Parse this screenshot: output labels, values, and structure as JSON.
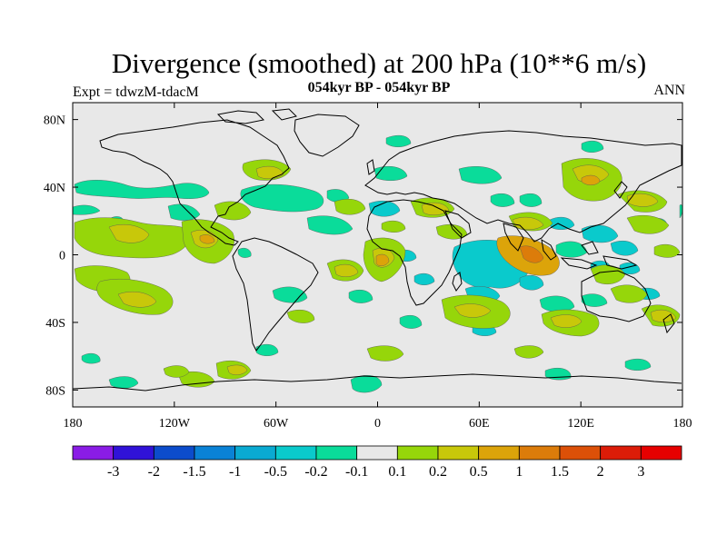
{
  "title": "Divergence (smoothed) at 200 hPa (10**6 m/s)",
  "left_string": "Expt = tdwzM-tdacM",
  "center_string": "054kyr BP - 054kyr BP",
  "right_string": "ANN",
  "map": {
    "projection": "cylindrical-equidistant",
    "lon_range": [
      -180,
      180
    ],
    "lat_range": [
      -90,
      90
    ],
    "lon_ticks": [
      {
        "value": -180,
        "label": "180"
      },
      {
        "value": -120,
        "label": "120W"
      },
      {
        "value": -60,
        "label": "60W"
      },
      {
        "value": 0,
        "label": "0"
      },
      {
        "value": 60,
        "label": "60E"
      },
      {
        "value": 120,
        "label": "120E"
      },
      {
        "value": 180,
        "label": "180"
      }
    ],
    "lat_ticks": [
      {
        "value": 80,
        "label": "80N"
      },
      {
        "value": 40,
        "label": "40N"
      },
      {
        "value": 0,
        "label": "0"
      },
      {
        "value": -40,
        "label": "40S"
      },
      {
        "value": -80,
        "label": "80S"
      }
    ],
    "background_color": "#e8e8e8"
  },
  "colorbar": {
    "levels": [
      "-3",
      "-2",
      "-1.5",
      "-1",
      "-0.5",
      "-0.2",
      "-0.1",
      "0.1",
      "0.2",
      "0.5",
      "1",
      "1.5",
      "2",
      "3"
    ],
    "colors": [
      "#8a1ce6",
      "#3012d8",
      "#0c4ccc",
      "#0a82d6",
      "#0aaad2",
      "#0acacc",
      "#0adc9a",
      "#e8e8e8",
      "#96d60a",
      "#c8c80a",
      "#dca40a",
      "#dc7c0a",
      "#dc5008",
      "#dc1c08",
      "#e60000"
    ]
  }
}
